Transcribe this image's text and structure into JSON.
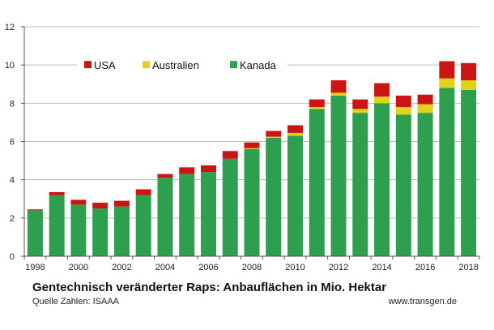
{
  "chart_data": {
    "type": "bar",
    "stacked": true,
    "title": "Gentechnisch veränderter Raps: Anbauflächen in Mio. Hektar",
    "source": "Quelle Zahlen: ISAAA",
    "website": "www.transgen.de",
    "x": [
      1998,
      1999,
      2000,
      2001,
      2002,
      2003,
      2004,
      2005,
      2006,
      2007,
      2008,
      2009,
      2010,
      2011,
      2012,
      2013,
      2014,
      2015,
      2016,
      2017,
      2018
    ],
    "x_tick_labels": [
      "1998",
      "2000",
      "2002",
      "2004",
      "2006",
      "2008",
      "2010",
      "2012",
      "2014",
      "2016",
      "2018"
    ],
    "ylim": [
      0,
      12
    ],
    "y_ticks": [
      0,
      2,
      4,
      6,
      8,
      10,
      12
    ],
    "grid": true,
    "legend_position": "top-left",
    "series": [
      {
        "name": "Kanada",
        "color": "#2e9e4f",
        "values": [
          2.4,
          3.2,
          2.7,
          2.5,
          2.6,
          3.2,
          4.1,
          4.3,
          4.4,
          5.1,
          5.6,
          6.2,
          6.3,
          7.7,
          8.4,
          7.5,
          8.0,
          7.4,
          7.5,
          8.8,
          8.7
        ]
      },
      {
        "name": "Australien",
        "color": "#e3d21c",
        "values": [
          0,
          0,
          0,
          0,
          0,
          0,
          0,
          0,
          0,
          0,
          0.05,
          0.05,
          0.15,
          0.1,
          0.15,
          0.2,
          0.35,
          0.4,
          0.45,
          0.5,
          0.5
        ]
      },
      {
        "name": "USA",
        "color": "#cc1414",
        "values": [
          0.05,
          0.15,
          0.25,
          0.3,
          0.3,
          0.3,
          0.2,
          0.35,
          0.35,
          0.4,
          0.3,
          0.3,
          0.4,
          0.4,
          0.65,
          0.5,
          0.7,
          0.6,
          0.5,
          0.9,
          0.9
        ]
      }
    ],
    "legend": [
      {
        "name": "USA",
        "color": "#cc1414"
      },
      {
        "name": "Australien",
        "color": "#e3d21c"
      },
      {
        "name": "Kanada",
        "color": "#2e9e4f"
      }
    ]
  }
}
